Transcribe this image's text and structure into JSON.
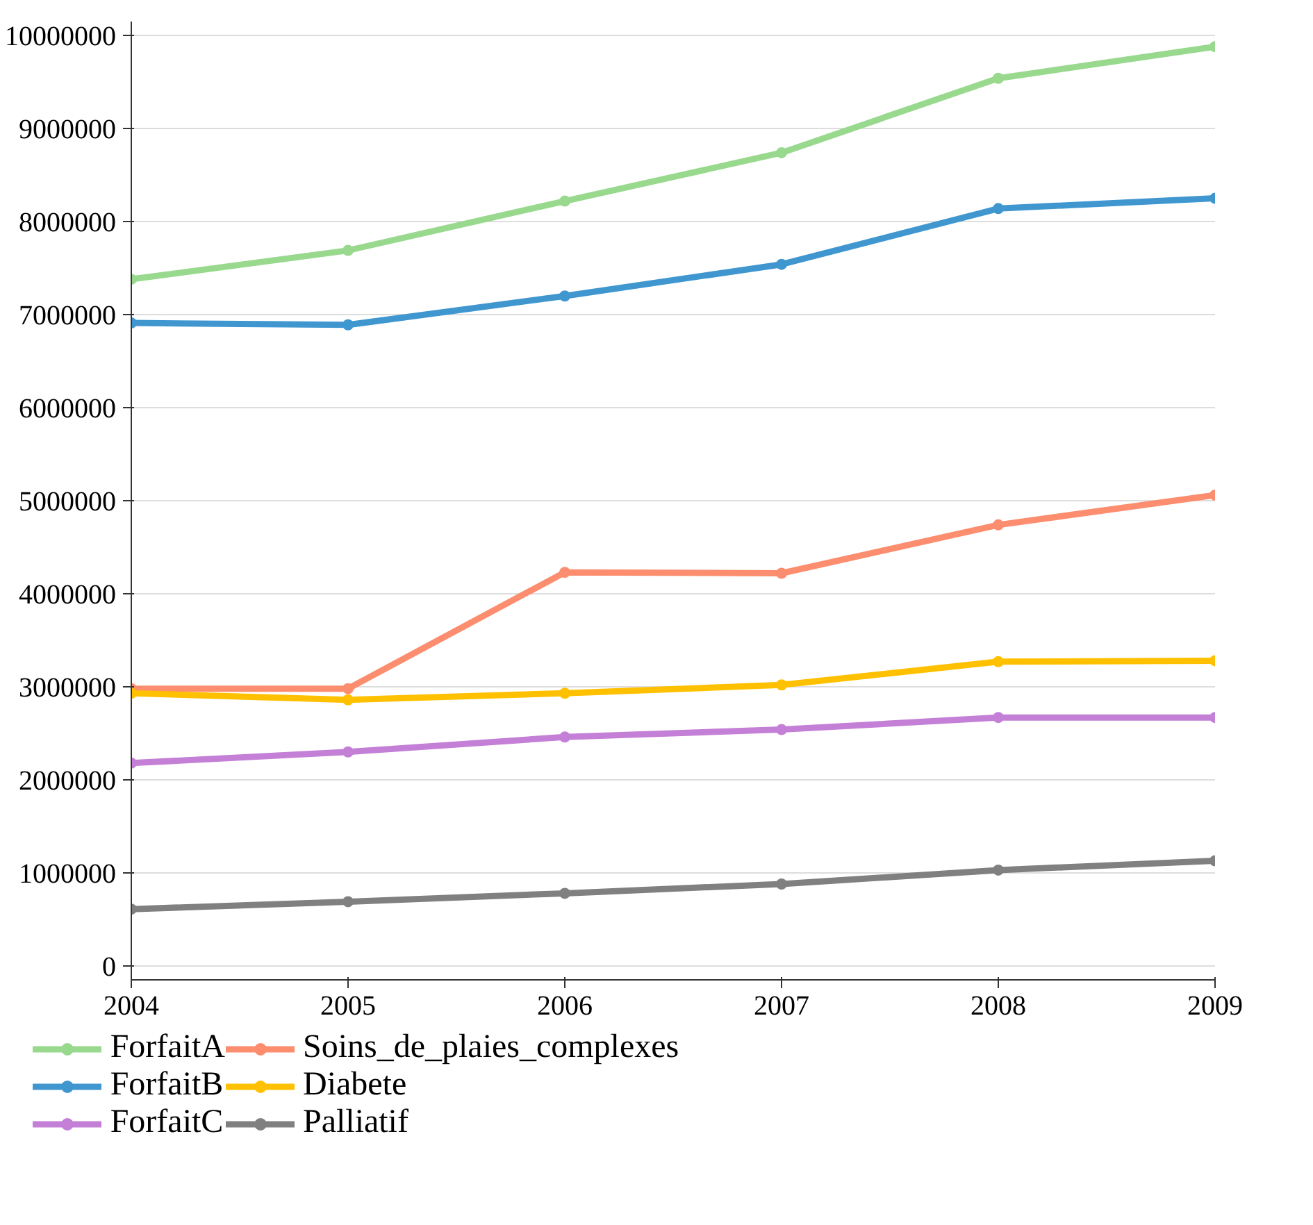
{
  "chart_data": {
    "type": "line",
    "x": [
      2004,
      2005,
      2006,
      2007,
      2008,
      2009
    ],
    "series": [
      {
        "name": "ForfaitA",
        "color": "#98d98e",
        "values": [
          7380000,
          7690000,
          8220000,
          8740000,
          9540000,
          9880000
        ]
      },
      {
        "name": "ForfaitB",
        "color": "#4097d0",
        "values": [
          6910000,
          6890000,
          7200000,
          7540000,
          8140000,
          8250000
        ]
      },
      {
        "name": "ForfaitC",
        "color": "#c47fd6",
        "values": [
          2180000,
          2300000,
          2460000,
          2540000,
          2670000,
          2670000
        ]
      },
      {
        "name": "Soins_de_plaies_complexes",
        "color": "#fc8d6e",
        "values": [
          2980000,
          2980000,
          4230000,
          4220000,
          4740000,
          5060000
        ]
      },
      {
        "name": "Diabete",
        "color": "#ffc000",
        "values": [
          2930000,
          2860000,
          2930000,
          3020000,
          3270000,
          3280000
        ]
      },
      {
        "name": "Palliatif",
        "color": "#808080",
        "values": [
          610000,
          690000,
          780000,
          880000,
          1030000,
          1130000
        ]
      }
    ],
    "xlim": [
      2004,
      2009
    ],
    "xticks": [
      2004,
      2005,
      2006,
      2007,
      2008,
      2009
    ],
    "ylim": [
      -150000,
      10150000
    ],
    "yticks": [
      0,
      1000000,
      2000000,
      3000000,
      4000000,
      5000000,
      6000000,
      7000000,
      8000000,
      9000000,
      10000000
    ],
    "grid": "y",
    "legend": "bottom",
    "marker": "circle",
    "line_style": "solid"
  }
}
